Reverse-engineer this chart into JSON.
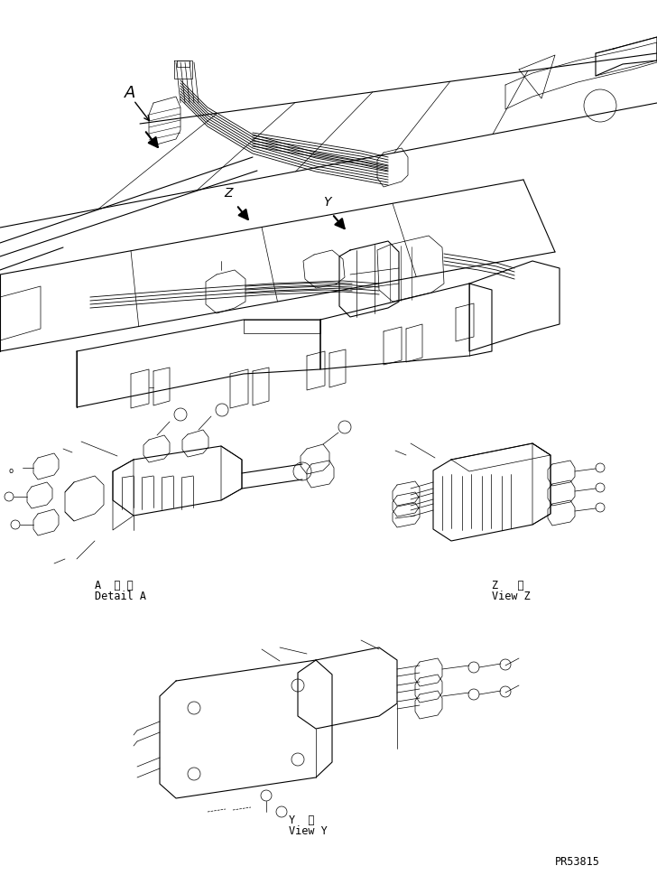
{
  "bg_color": "#ffffff",
  "line_color": "#000000",
  "part_number": "PR53815",
  "detail_A_label_jp": "A  詳 細",
  "detail_A_label_en": "Detail A",
  "view_Z_label_jp": "Z   視",
  "view_Z_label_en": "View Z",
  "view_Y_label_jp": "Y  視",
  "view_Y_label_en": "View Y"
}
